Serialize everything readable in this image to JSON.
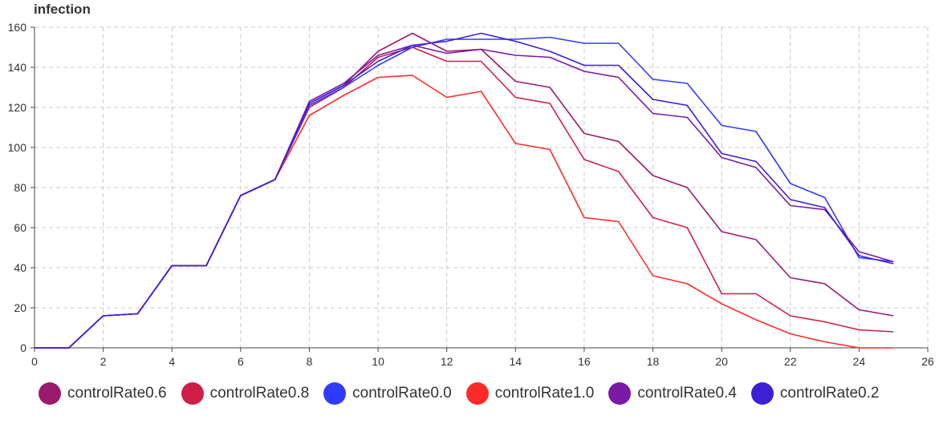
{
  "chart_data": {
    "type": "line",
    "title": "",
    "xlabel": "",
    "ylabel": "infection",
    "xlim": [
      0,
      26
    ],
    "ylim": [
      0,
      160
    ],
    "x_ticks": [
      0,
      2,
      4,
      6,
      8,
      10,
      12,
      14,
      16,
      18,
      20,
      22,
      24,
      26
    ],
    "y_ticks": [
      0,
      20,
      40,
      60,
      80,
      100,
      120,
      140,
      160
    ],
    "grid": true,
    "legend_position": "bottom",
    "x": [
      0,
      1,
      2,
      3,
      4,
      5,
      6,
      7,
      8,
      9,
      10,
      11,
      12,
      13,
      14,
      15,
      16,
      17,
      18,
      19,
      20,
      21,
      22,
      23,
      24,
      25
    ],
    "series": [
      {
        "name": "controlRate0.6",
        "color": "#9b1a6e",
        "values": [
          0,
          0,
          16,
          17,
          41,
          41,
          76,
          84,
          122,
          131,
          148,
          157,
          148,
          149,
          133,
          130,
          107,
          103,
          86,
          80,
          58,
          54,
          35,
          32,
          19,
          16
        ]
      },
      {
        "name": "controlRate0.8",
        "color": "#d01d48",
        "values": [
          0,
          0,
          16,
          17,
          41,
          41,
          76,
          84,
          120,
          130,
          145,
          150,
          143,
          143,
          125,
          122,
          94,
          88,
          65,
          60,
          27,
          27,
          16,
          13,
          9,
          8
        ]
      },
      {
        "name": "controlRate0.0",
        "color": "#2f3bff",
        "values": [
          0,
          0,
          16,
          17,
          41,
          41,
          76,
          84,
          121,
          130,
          141,
          150,
          154,
          154,
          154,
          155,
          152,
          152,
          134,
          132,
          111,
          108,
          82,
          75,
          45,
          43
        ]
      },
      {
        "name": "controlRate1.0",
        "color": "#ff2a2a",
        "values": [
          0,
          0,
          16,
          17,
          41,
          41,
          76,
          84,
          116,
          126,
          135,
          136,
          125,
          128,
          102,
          99,
          65,
          63,
          36,
          32,
          22,
          14,
          7,
          3,
          0,
          0
        ]
      },
      {
        "name": "controlRate0.4",
        "color": "#7a1aa6",
        "values": [
          0,
          0,
          16,
          17,
          41,
          41,
          76,
          84,
          123,
          132,
          146,
          151,
          147,
          149,
          146,
          145,
          138,
          135,
          117,
          115,
          95,
          90,
          71,
          69,
          48,
          43
        ]
      },
      {
        "name": "controlRate0.2",
        "color": "#3d1fd6",
        "values": [
          0,
          0,
          16,
          17,
          41,
          41,
          76,
          84,
          122,
          131,
          143,
          151,
          153,
          157,
          153,
          148,
          141,
          141,
          124,
          121,
          97,
          93,
          74,
          70,
          46,
          42
        ]
      }
    ]
  }
}
